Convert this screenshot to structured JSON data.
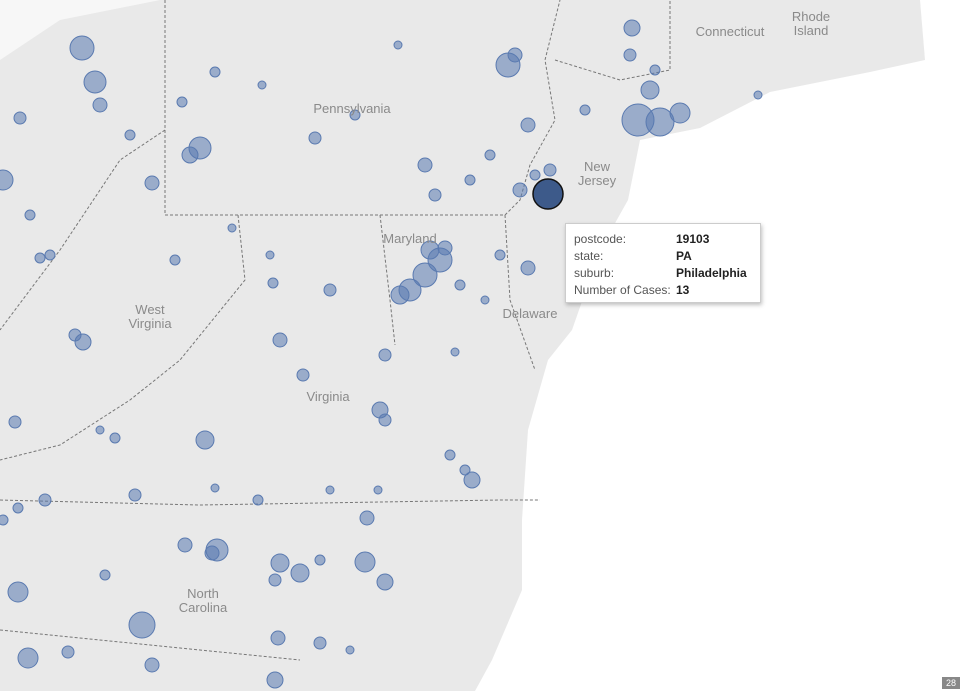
{
  "map": {
    "labels": [
      "Connecticut",
      "Rhode Island",
      "Pennsylvania",
      "New Jersey",
      "Maryland",
      "Delaware",
      "West Virginia",
      "Virginia",
      "North Carolina"
    ]
  },
  "tooltip": {
    "rows": [
      {
        "label": "postcode:",
        "value": "19103"
      },
      {
        "label": "state:",
        "value": "PA"
      },
      {
        "label": "suburb:",
        "value": "Philadelphia"
      },
      {
        "label": "Number of Cases:",
        "value": 13
      }
    ]
  },
  "badge": "28"
}
